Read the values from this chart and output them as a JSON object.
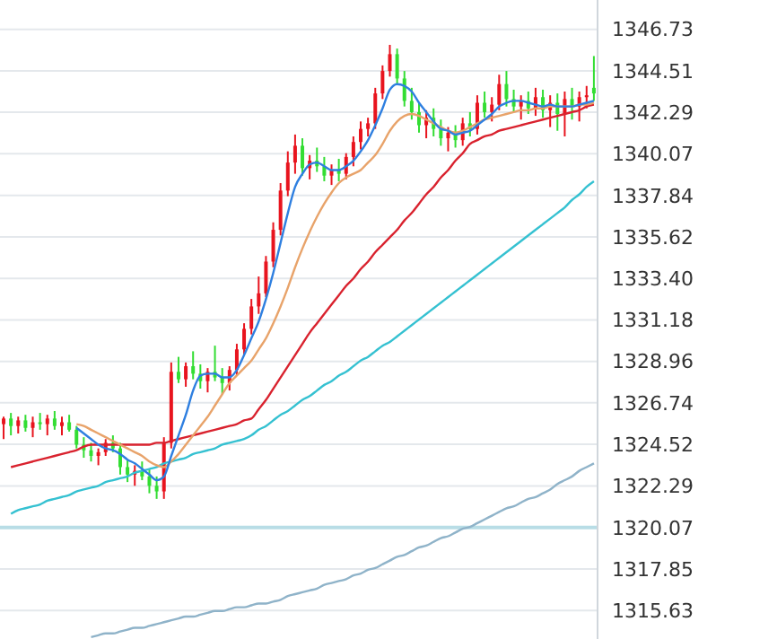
{
  "chart_data": {
    "type": "candlestick",
    "categories": [
      null,
      null,
      null,
      null,
      null,
      null,
      null,
      null,
      null,
      null,
      null,
      null,
      null,
      null,
      null,
      null,
      null,
      null,
      null,
      null,
      null,
      null,
      null,
      null,
      null,
      null,
      null,
      null,
      null,
      null,
      null,
      null,
      null,
      null,
      null,
      null,
      null,
      null,
      null,
      null,
      null,
      null,
      null,
      null,
      null,
      null,
      null,
      null,
      null,
      null,
      null,
      null,
      null,
      null,
      null,
      null,
      null,
      null,
      null,
      null,
      null,
      null,
      null,
      null,
      null,
      null,
      null,
      null,
      null,
      null,
      null,
      null,
      null,
      null,
      null,
      null,
      null,
      null,
      null,
      null,
      null,
      null
    ],
    "ohlc": [
      [
        1325.6,
        1326.0,
        1324.8,
        1325.9
      ],
      [
        1325.9,
        1326.2,
        1325.0,
        1325.5
      ],
      [
        1325.5,
        1326.0,
        1325.1,
        1325.8
      ],
      [
        1325.8,
        1326.1,
        1325.2,
        1325.4
      ],
      [
        1325.4,
        1326.0,
        1324.9,
        1325.7
      ],
      [
        1325.7,
        1326.2,
        1325.3,
        1325.6
      ],
      [
        1325.6,
        1326.1,
        1325.0,
        1325.9
      ],
      [
        1325.9,
        1326.3,
        1325.3,
        1325.5
      ],
      [
        1325.5,
        1326.0,
        1325.0,
        1325.7
      ],
      [
        1325.7,
        1326.1,
        1325.2,
        1325.3
      ],
      [
        1325.3,
        1325.5,
        1324.3,
        1324.5
      ],
      [
        1324.5,
        1324.9,
        1323.8,
        1324.2
      ],
      [
        1324.2,
        1324.6,
        1323.6,
        1323.9
      ],
      [
        1323.9,
        1324.3,
        1323.4,
        1324.1
      ],
      [
        1324.1,
        1324.8,
        1323.9,
        1324.6
      ],
      [
        1324.6,
        1325.0,
        1324.1,
        1324.3
      ],
      [
        1324.3,
        1324.6,
        1322.9,
        1323.3
      ],
      [
        1323.3,
        1323.7,
        1322.5,
        1322.9
      ],
      [
        1322.9,
        1323.4,
        1322.3,
        1323.1
      ],
      [
        1323.1,
        1323.6,
        1322.6,
        1322.8
      ],
      [
        1322.8,
        1323.2,
        1321.9,
        1322.3
      ],
      [
        1322.3,
        1322.8,
        1321.6,
        1322.0
      ],
      [
        1322.0,
        1324.9,
        1321.6,
        1324.6
      ],
      [
        1324.6,
        1328.9,
        1324.3,
        1328.4
      ],
      [
        1328.4,
        1329.2,
        1327.8,
        1328.0
      ],
      [
        1328.0,
        1328.9,
        1327.6,
        1328.7
      ],
      [
        1328.7,
        1329.5,
        1328.0,
        1328.3
      ],
      [
        1328.3,
        1328.8,
        1327.5,
        1327.9
      ],
      [
        1327.9,
        1328.6,
        1327.3,
        1328.4
      ],
      [
        1328.4,
        1329.8,
        1327.9,
        1328.1
      ],
      [
        1328.1,
        1328.6,
        1327.2,
        1327.8
      ],
      [
        1327.8,
        1328.7,
        1327.4,
        1328.5
      ],
      [
        1328.5,
        1329.9,
        1328.2,
        1329.6
      ],
      [
        1329.6,
        1331.0,
        1329.3,
        1330.7
      ],
      [
        1330.7,
        1332.3,
        1330.4,
        1331.9
      ],
      [
        1331.9,
        1333.5,
        1331.5,
        1332.6
      ],
      [
        1332.6,
        1334.6,
        1332.4,
        1334.3
      ],
      [
        1334.3,
        1336.4,
        1334.0,
        1336.0
      ],
      [
        1336.0,
        1338.5,
        1335.7,
        1338.1
      ],
      [
        1338.1,
        1340.2,
        1337.8,
        1339.6
      ],
      [
        1339.6,
        1341.1,
        1339.0,
        1340.5
      ],
      [
        1340.5,
        1340.9,
        1338.9,
        1339.3
      ],
      [
        1339.3,
        1340.0,
        1338.7,
        1339.7
      ],
      [
        1339.7,
        1340.4,
        1339.1,
        1339.4
      ],
      [
        1339.4,
        1339.9,
        1338.6,
        1338.9
      ],
      [
        1338.9,
        1339.5,
        1338.4,
        1339.2
      ],
      [
        1339.2,
        1339.8,
        1338.6,
        1339.0
      ],
      [
        1339.0,
        1340.1,
        1338.7,
        1339.9
      ],
      [
        1339.9,
        1341.0,
        1339.4,
        1340.7
      ],
      [
        1340.7,
        1341.8,
        1340.3,
        1341.4
      ],
      [
        1341.4,
        1342.0,
        1341.0,
        1341.7
      ],
      [
        1341.7,
        1343.6,
        1341.4,
        1343.3
      ],
      [
        1343.3,
        1344.8,
        1343.0,
        1344.5
      ],
      [
        1344.5,
        1345.9,
        1344.2,
        1345.4
      ],
      [
        1345.4,
        1345.7,
        1343.8,
        1344.1
      ],
      [
        1344.1,
        1344.5,
        1342.6,
        1342.9
      ],
      [
        1342.9,
        1343.6,
        1341.9,
        1342.3
      ],
      [
        1342.3,
        1342.8,
        1341.2,
        1341.6
      ],
      [
        1341.6,
        1342.4,
        1340.9,
        1342.0
      ],
      [
        1342.0,
        1342.5,
        1341.0,
        1341.4
      ],
      [
        1341.4,
        1341.9,
        1340.5,
        1340.9
      ],
      [
        1340.9,
        1341.5,
        1340.2,
        1341.2
      ],
      [
        1341.2,
        1341.6,
        1340.4,
        1340.8
      ],
      [
        1340.8,
        1342.0,
        1340.5,
        1341.7
      ],
      [
        1341.7,
        1342.3,
        1341.0,
        1341.4
      ],
      [
        1341.4,
        1343.2,
        1341.1,
        1342.8
      ],
      [
        1342.8,
        1343.4,
        1342.0,
        1342.3
      ],
      [
        1342.3,
        1343.1,
        1341.8,
        1342.7
      ],
      [
        1342.7,
        1344.3,
        1342.4,
        1343.8
      ],
      [
        1343.8,
        1344.5,
        1342.6,
        1343.0
      ],
      [
        1343.0,
        1343.5,
        1342.3,
        1342.6
      ],
      [
        1342.6,
        1343.2,
        1341.9,
        1342.9
      ],
      [
        1342.9,
        1343.4,
        1342.2,
        1342.5
      ],
      [
        1342.5,
        1343.6,
        1342.1,
        1343.1
      ],
      [
        1343.1,
        1343.5,
        1342.0,
        1342.4
      ],
      [
        1342.4,
        1343.2,
        1341.5,
        1342.8
      ],
      [
        1342.8,
        1343.3,
        1341.3,
        1342.2
      ],
      [
        1342.2,
        1343.4,
        1341.0,
        1343.0
      ],
      [
        1343.0,
        1343.6,
        1341.9,
        1342.6
      ],
      [
        1342.6,
        1343.4,
        1341.8,
        1343.1
      ],
      [
        1343.1,
        1343.7,
        1342.5,
        1343.2
      ],
      [
        1343.6,
        1345.3,
        1342.9,
        1343.3
      ]
    ],
    "colors": [
      "#e8141e",
      "#33dd33",
      "#e8141e",
      "#33dd33",
      "#e8141e",
      "#33dd33",
      "#e8141e",
      "#33dd33",
      "#e8141e",
      "#33dd33",
      "#33dd33",
      "#33dd33",
      "#33dd33",
      "#e8141e",
      "#e8141e",
      "#33dd33",
      "#33dd33",
      "#33dd33",
      "#e8141e",
      "#33dd33",
      "#33dd33",
      "#33dd33",
      "#e8141e",
      "#e8141e",
      "#33dd33",
      "#e8141e",
      "#33dd33",
      "#33dd33",
      "#e8141e",
      "#33dd33",
      "#33dd33",
      "#e8141e",
      "#e8141e",
      "#e8141e",
      "#e8141e",
      "#e8141e",
      "#e8141e",
      "#e8141e",
      "#e8141e",
      "#e8141e",
      "#e8141e",
      "#33dd33",
      "#e8141e",
      "#33dd33",
      "#33dd33",
      "#e8141e",
      "#33dd33",
      "#e8141e",
      "#e8141e",
      "#e8141e",
      "#e8141e",
      "#e8141e",
      "#e8141e",
      "#e8141e",
      "#33dd33",
      "#33dd33",
      "#33dd33",
      "#33dd33",
      "#e8141e",
      "#33dd33",
      "#33dd33",
      "#e8141e",
      "#33dd33",
      "#e8141e",
      "#33dd33",
      "#e8141e",
      "#33dd33",
      "#e8141e",
      "#e8141e",
      "#33dd33",
      "#33dd33",
      "#e8141e",
      "#33dd33",
      "#e8141e",
      "#33dd33",
      "#e8141e",
      "#33dd33",
      "#e8141e",
      "#33dd33",
      "#e8141e",
      "#e8141e",
      "#33dd33"
    ],
    "series": [
      {
        "type": "line",
        "color": "#d9222e",
        "values": [
          null,
          1323.3,
          1323.4,
          1323.5,
          1323.6,
          1323.7,
          1323.8,
          1323.9,
          1324.0,
          1324.1,
          1324.2,
          1324.4,
          1324.5,
          1324.5,
          1324.5,
          1324.5,
          1324.5,
          1324.5,
          1324.5,
          1324.5,
          1324.5,
          1324.6,
          1324.6,
          1324.7,
          1324.8,
          1324.9,
          1325.0,
          1325.1,
          1325.2,
          1325.3,
          1325.4,
          1325.5,
          1325.6,
          1325.8,
          1325.9,
          1326.4,
          1326.9,
          1327.5,
          1328.1,
          1328.7,
          1329.3,
          1329.9,
          1330.5,
          1331.0,
          1331.5,
          1332.0,
          1332.5,
          1333.0,
          1333.4,
          1333.9,
          1334.3,
          1334.8,
          1335.2,
          1335.6,
          1336.0,
          1336.5,
          1336.9,
          1337.4,
          1337.9,
          1338.3,
          1338.8,
          1339.2,
          1339.7,
          1340.1,
          1340.6,
          1340.8,
          1341.0,
          1341.1,
          1341.3,
          1341.4,
          1341.5,
          1341.6,
          1341.7,
          1341.8,
          1341.9,
          1342.0,
          1342.1,
          1342.2,
          1342.3,
          1342.4,
          1342.6,
          1342.7
        ]
      },
      {
        "type": "line",
        "color": "#35c1d1",
        "values": [
          null,
          1320.8,
          1321.0,
          1321.1,
          1321.2,
          1321.3,
          1321.5,
          1321.6,
          1321.7,
          1321.8,
          1322.0,
          1322.1,
          1322.2,
          1322.3,
          1322.5,
          1322.6,
          1322.7,
          1322.8,
          1323.0,
          1323.1,
          1323.2,
          1323.3,
          1323.5,
          1323.6,
          1323.7,
          1323.8,
          1324.0,
          1324.1,
          1324.2,
          1324.3,
          1324.5,
          1324.6,
          1324.7,
          1324.8,
          1325.0,
          1325.3,
          1325.5,
          1325.8,
          1326.1,
          1326.3,
          1326.6,
          1326.9,
          1327.1,
          1327.4,
          1327.7,
          1327.9,
          1328.2,
          1328.4,
          1328.7,
          1329.0,
          1329.2,
          1329.5,
          1329.8,
          1330.0,
          1330.3,
          1330.6,
          1330.9,
          1331.2,
          1331.5,
          1331.8,
          1332.1,
          1332.4,
          1332.7,
          1333.0,
          1333.3,
          1333.6,
          1333.9,
          1334.2,
          1334.5,
          1334.8,
          1335.1,
          1335.4,
          1335.7,
          1336.0,
          1336.3,
          1336.6,
          1336.9,
          1337.2,
          1337.6,
          1337.9,
          1338.3,
          1338.6
        ]
      },
      {
        "type": "line",
        "color": "#8fb3c9",
        "values": [
          null,
          null,
          null,
          null,
          null,
          null,
          null,
          null,
          null,
          null,
          null,
          null,
          1314.2,
          1314.3,
          1314.4,
          1314.4,
          1314.5,
          1314.6,
          1314.7,
          1314.7,
          1314.8,
          1314.9,
          1315.0,
          1315.1,
          1315.2,
          1315.3,
          1315.3,
          1315.4,
          1315.5,
          1315.6,
          1315.6,
          1315.7,
          1315.8,
          1315.8,
          1315.9,
          1316.0,
          1316.0,
          1316.1,
          1316.2,
          1316.4,
          1316.5,
          1316.6,
          1316.7,
          1316.8,
          1317.0,
          1317.1,
          1317.2,
          1317.3,
          1317.5,
          1317.6,
          1317.8,
          1317.9,
          1318.1,
          1318.3,
          1318.5,
          1318.6,
          1318.8,
          1319.0,
          1319.1,
          1319.3,
          1319.5,
          1319.6,
          1319.8,
          1320.0,
          1320.1,
          1320.3,
          1320.5,
          1320.7,
          1320.9,
          1321.1,
          1321.2,
          1321.4,
          1321.6,
          1321.7,
          1321.9,
          1322.1,
          1322.4,
          1322.6,
          1322.8,
          1323.1,
          1323.3,
          1323.5
        ]
      },
      {
        "type": "line",
        "color": "#e8a36a",
        "values": [
          null,
          null,
          null,
          null,
          null,
          null,
          null,
          null,
          null,
          null,
          1325.6,
          1325.5,
          1325.3,
          1325.1,
          1324.9,
          1324.7,
          1324.5,
          1324.3,
          1324.1,
          1323.9,
          1323.6,
          1323.4,
          1323.3,
          1323.6,
          1324.0,
          1324.5,
          1325.0,
          1325.5,
          1326.0,
          1326.6,
          1327.2,
          1327.8,
          1328.2,
          1328.6,
          1329.0,
          1329.6,
          1330.2,
          1331.0,
          1331.9,
          1332.9,
          1334.0,
          1335.0,
          1335.9,
          1336.7,
          1337.4,
          1338.0,
          1338.5,
          1338.8,
          1339.0,
          1339.2,
          1339.6,
          1340.0,
          1340.6,
          1341.3,
          1341.8,
          1342.1,
          1342.2,
          1342.1,
          1341.9,
          1341.7,
          1341.5,
          1341.3,
          1341.2,
          1341.3,
          1341.5,
          1341.7,
          1341.9,
          1342.0,
          1342.1,
          1342.2,
          1342.3,
          1342.4,
          1342.4,
          1342.5,
          1342.5,
          1342.6,
          1342.6,
          1342.6,
          1342.6,
          1342.7,
          1342.7,
          1342.8
        ]
      },
      {
        "type": "line",
        "color": "#2e7fe0",
        "values": [
          null,
          null,
          null,
          null,
          null,
          null,
          null,
          null,
          null,
          null,
          1325.4,
          1325.1,
          1324.8,
          1324.5,
          1324.3,
          1324.2,
          1324.0,
          1323.7,
          1323.5,
          1323.2,
          1322.9,
          1322.6,
          1322.8,
          1323.9,
          1325.0,
          1326.1,
          1327.4,
          1328.2,
          1328.3,
          1328.3,
          1328.1,
          1328.1,
          1328.5,
          1329.3,
          1330.2,
          1331.1,
          1332.3,
          1333.7,
          1335.3,
          1336.9,
          1338.3,
          1339.0,
          1339.5,
          1339.6,
          1339.4,
          1339.2,
          1339.2,
          1339.4,
          1339.7,
          1340.2,
          1340.8,
          1341.6,
          1342.5,
          1343.5,
          1343.8,
          1343.7,
          1343.4,
          1342.8,
          1342.3,
          1341.8,
          1341.4,
          1341.3,
          1341.1,
          1341.2,
          1341.3,
          1341.6,
          1341.9,
          1342.2,
          1342.6,
          1342.8,
          1342.9,
          1342.9,
          1342.8,
          1342.7,
          1342.6,
          1342.7,
          1342.6,
          1342.6,
          1342.6,
          1342.7,
          1342.8,
          1342.9
        ]
      }
    ],
    "ref_lines": [
      {
        "axis": "y",
        "value": 1320.07,
        "color": "#b8dde6"
      }
    ],
    "ylim": [
      1314.1,
      1348.3
    ],
    "yticks": [
      1346.73,
      1344.51,
      1342.29,
      1340.07,
      1337.84,
      1335.62,
      {
        "value": 1333.4,
        "label": "1333.40"
      },
      1331.18,
      1328.96,
      1326.74,
      1324.52,
      1322.29,
      1320.07,
      1317.85,
      1315.63
    ],
    "grid": "y",
    "tick_labels": "y"
  }
}
